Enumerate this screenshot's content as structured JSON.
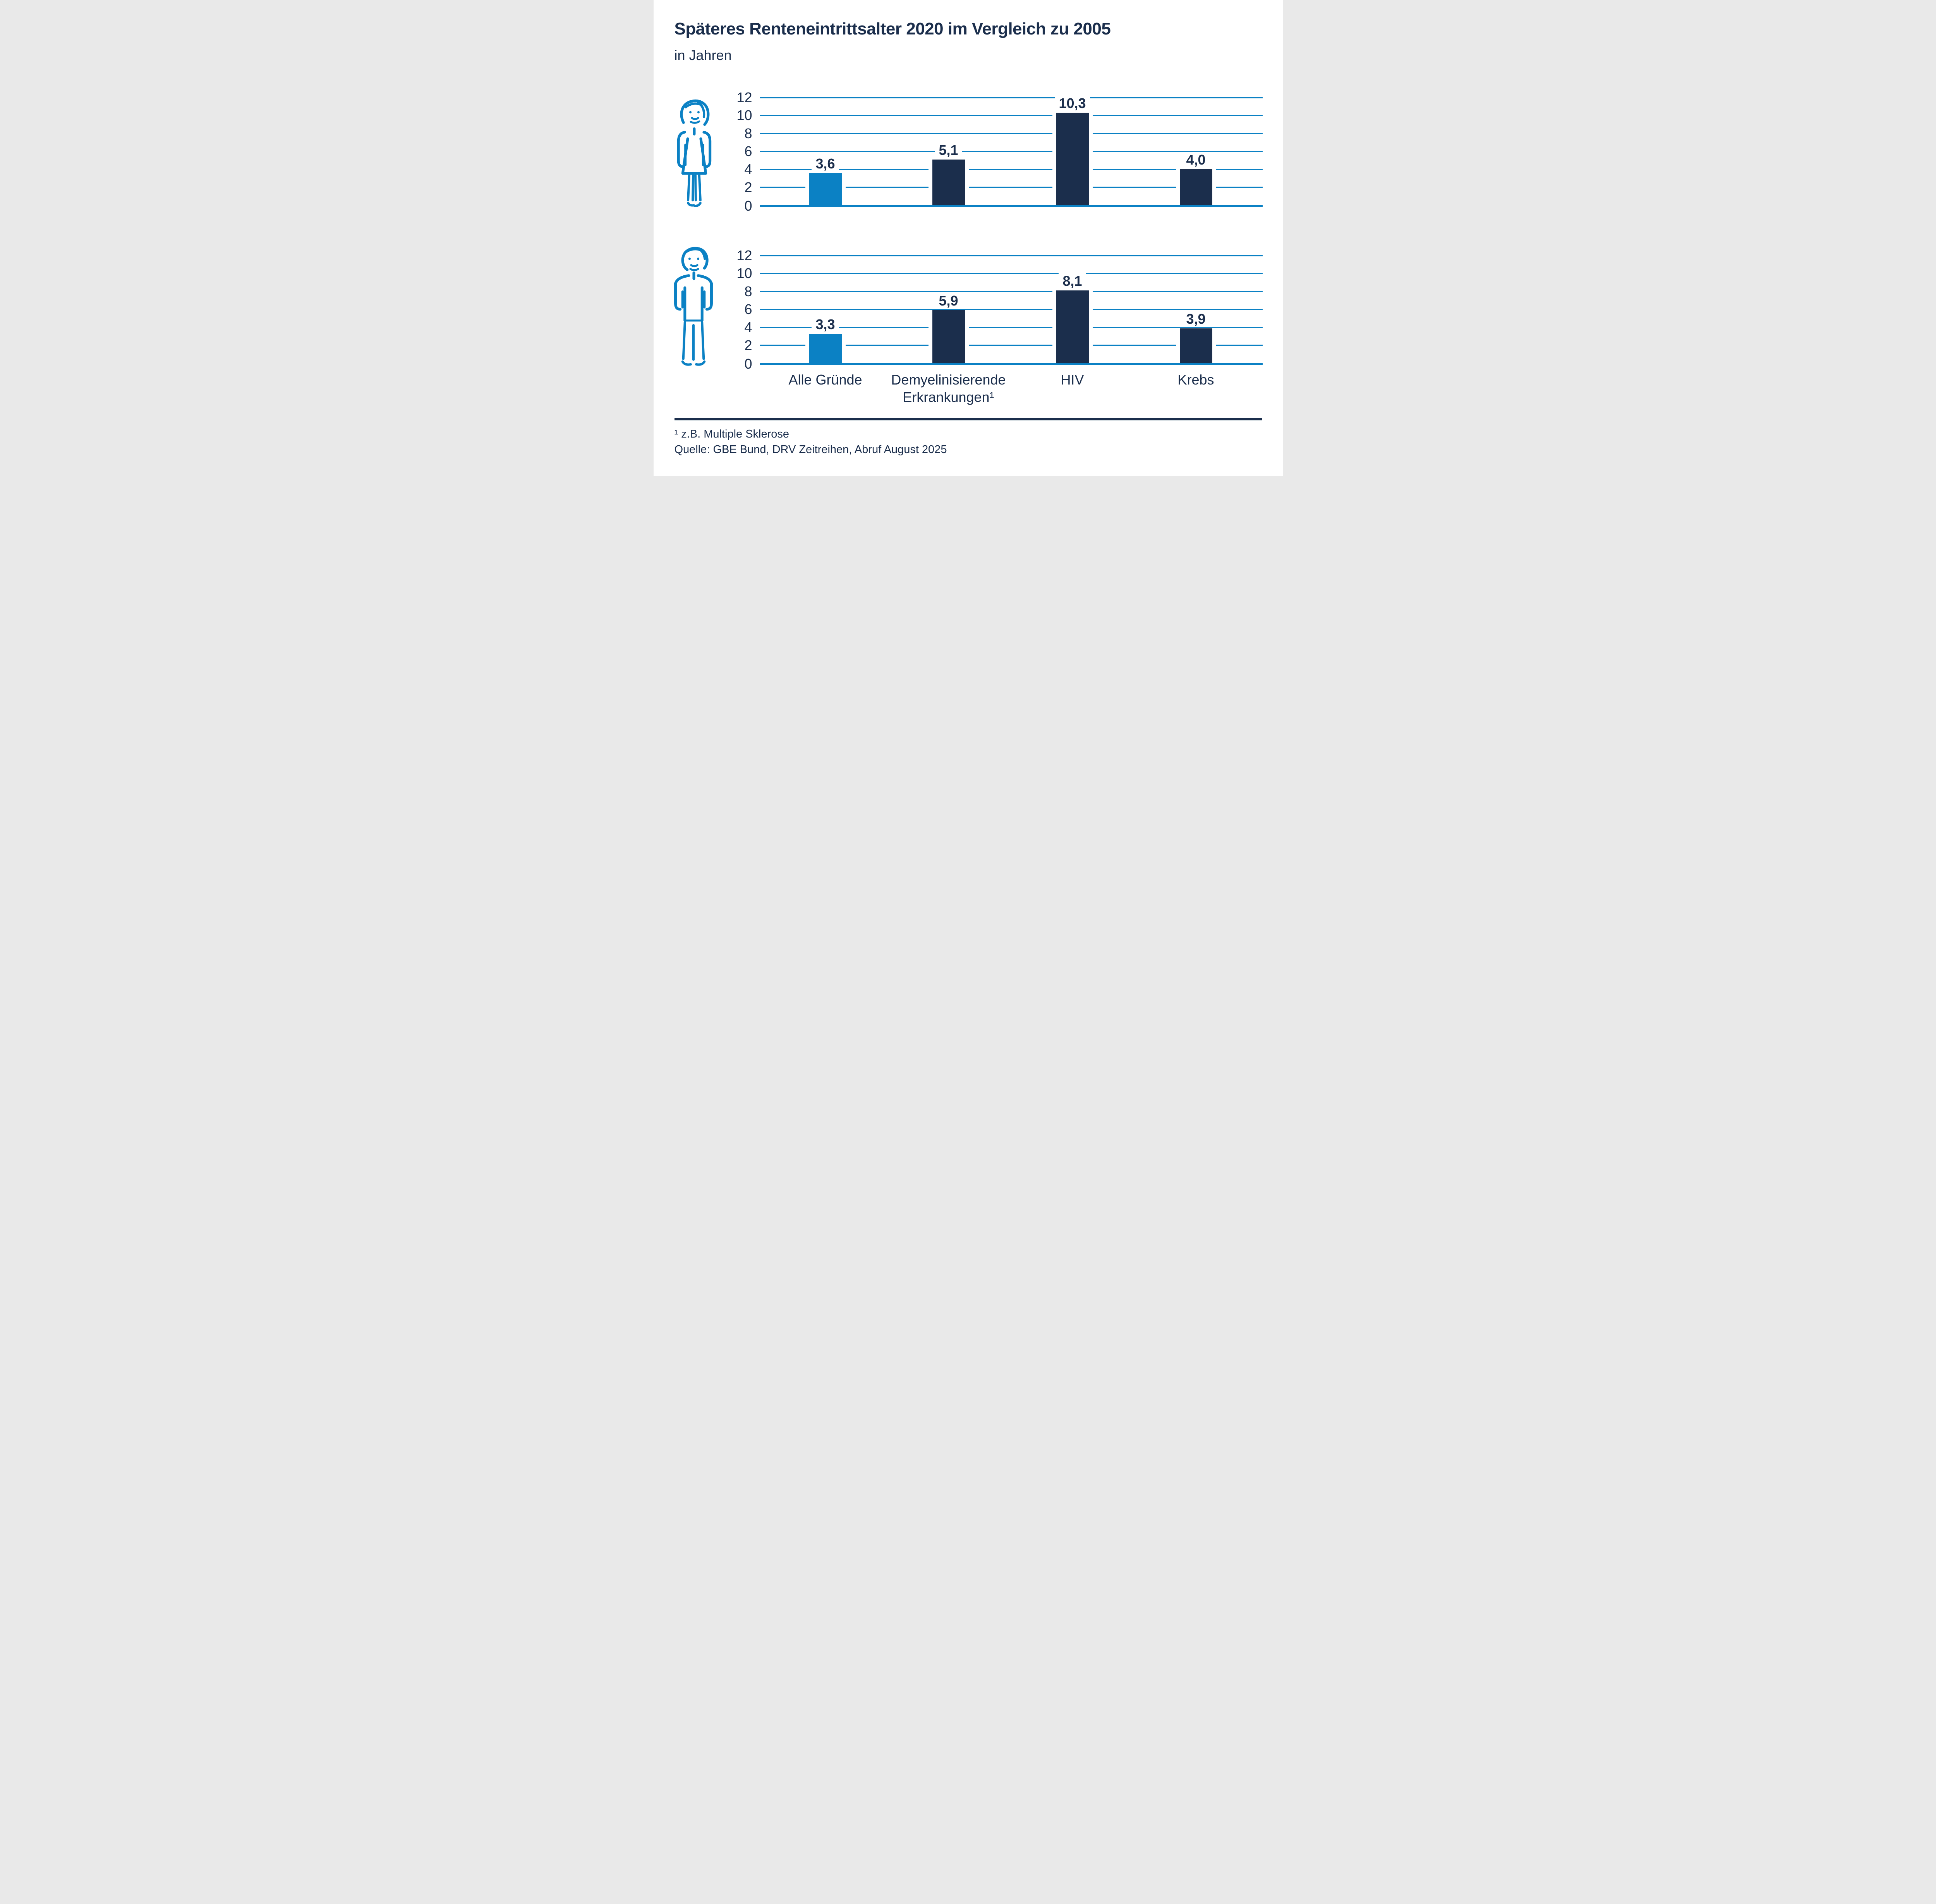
{
  "header": {
    "title": "Späteres Renteneintrittsalter 2020 im Vergleich zu 2005",
    "subtitle": "in Jahren"
  },
  "colors": {
    "accent_blue": "#0b81c4",
    "dark_navy": "#1b2e4c",
    "rule_shadow": "#bcc7cf",
    "background": "#ffffff"
  },
  "chart_data": {
    "type": "bar",
    "title": "Späteres Renteneintrittsalter 2020 im Vergleich zu 2005",
    "unit_label": "in Jahren",
    "categories": [
      "Alle Gründe",
      "Demyelinisierende Erkrankungen¹",
      "HIV",
      "Krebs"
    ],
    "ylim": [
      0,
      12
    ],
    "yticks": [
      0,
      2,
      4,
      6,
      8,
      10,
      12
    ],
    "grid": "horizontal",
    "layout": "two stacked charts sharing one category axis",
    "series": [
      {
        "icon": "woman-icon",
        "values": [
          3.6,
          5.1,
          10.3,
          4.0
        ],
        "value_labels": [
          "3,6",
          "5,1",
          "10,3",
          "4,0"
        ]
      },
      {
        "icon": "man-icon",
        "values": [
          3.3,
          5.9,
          8.1,
          3.9
        ],
        "value_labels": [
          "3,3",
          "5,9",
          "8,1",
          "3,9"
        ]
      }
    ],
    "bar_color_first": "#0b81c4",
    "bar_color_rest": "#1b2e4c"
  },
  "footer": {
    "footnote": "¹ z.B. Multiple Sklerose",
    "source": "Quelle: GBE Bund, DRV Zeitreihen, Abruf August 2025"
  }
}
